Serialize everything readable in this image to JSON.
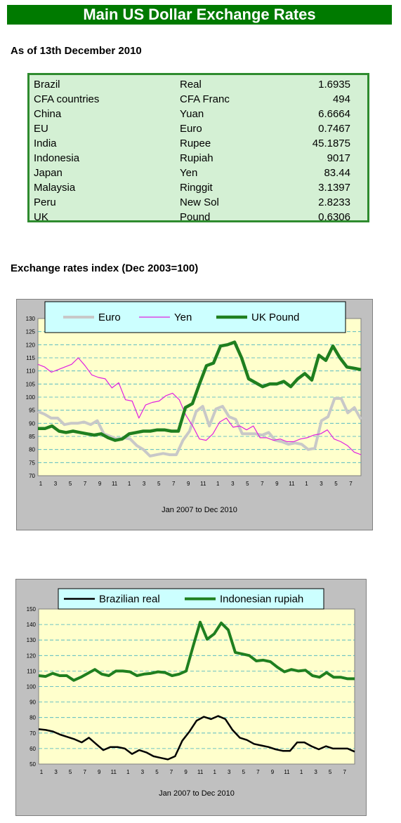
{
  "title": "Main US Dollar Exchange Rates",
  "as_of": "As of 13th December 2010",
  "rates": [
    {
      "country": "Brazil",
      "currency": "Real",
      "value": "1.6935"
    },
    {
      "country": "CFA countries",
      "currency": "CFA Franc",
      "value": "494"
    },
    {
      "country": "China",
      "currency": "Yuan",
      "value": "6.6664"
    },
    {
      "country": "EU",
      "currency": "Euro",
      "value": "0.7467"
    },
    {
      "country": "India",
      "currency": "Rupee",
      "value": "45.1875"
    },
    {
      "country": "Indonesia",
      "currency": "Rupiah",
      "value": "9017"
    },
    {
      "country": "Japan",
      "currency": "Yen",
      "value": "83.44"
    },
    {
      "country": "Malaysia",
      "currency": "Ringgit",
      "value": "3.1397"
    },
    {
      "country": "Peru",
      "currency": "New Sol",
      "value": "2.8233"
    },
    {
      "country": "UK",
      "currency": "Pound",
      "value": "0.6306"
    }
  ],
  "index_title": "Exchange rates index (Dec 2003=100)",
  "chart_data": [
    {
      "type": "line",
      "xlabel": "Jan 2007 to Dec 2010",
      "x_tick_labels": [
        "1",
        "3",
        "5",
        "7",
        "9",
        "11",
        "1",
        "3",
        "5",
        "7",
        "9",
        "11",
        "1",
        "3",
        "5",
        "7",
        "9",
        "11",
        "1",
        "3",
        "5",
        "7"
      ],
      "ylim": [
        70,
        130
      ],
      "y_ticks": [
        70,
        75,
        80,
        85,
        90,
        95,
        100,
        105,
        110,
        115,
        120,
        125,
        130
      ],
      "legend_position": "top",
      "grid": true,
      "series": [
        {
          "name": "Euro",
          "color": "#c8c8c8",
          "width": 4,
          "values": [
            94.5,
            93.5,
            92,
            92,
            89.5,
            90,
            90,
            90.5,
            89.5,
            91,
            86,
            85,
            84,
            84.5,
            84,
            81.5,
            80,
            77.5,
            78,
            78.5,
            78,
            78,
            83.5,
            87,
            94.5,
            96.5,
            89,
            95.5,
            96.5,
            92.5,
            91.5,
            86,
            86,
            86,
            85.5,
            86.5,
            83.5,
            83,
            82,
            82.5,
            82,
            80,
            80.5,
            91,
            92.5,
            99.5,
            99.5,
            94,
            96,
            91.5
          ]
        },
        {
          "name": "Yen",
          "color": "#e020e0",
          "width": 1.2,
          "values": [
            112.5,
            111.5,
            109.5,
            110.5,
            111.5,
            112.5,
            115,
            112,
            108.5,
            107.5,
            107,
            103.5,
            105.5,
            99,
            98.5,
            92,
            97,
            98,
            98.5,
            100.5,
            101.5,
            99,
            93,
            89,
            84,
            83.5,
            86,
            90.5,
            92,
            88.5,
            89,
            87.5,
            89,
            84.5,
            84.5,
            83.5,
            84,
            83,
            83,
            84,
            84.5,
            85.5,
            86,
            87.5,
            84,
            83,
            81.5,
            79,
            78
          ]
        },
        {
          "name": "UK Pound",
          "color": "#1f7f1f",
          "width": 4.5,
          "values": [
            88,
            88,
            89,
            87,
            86.5,
            87,
            86.5,
            86,
            85.5,
            86,
            84.5,
            83.5,
            84,
            86,
            86.5,
            87,
            87,
            87.5,
            87.5,
            87,
            87,
            96,
            97.5,
            105,
            112,
            113,
            119.5,
            120,
            121,
            115,
            107,
            105.5,
            104,
            105,
            105,
            106,
            104,
            107,
            109,
            106.5,
            116,
            114,
            119.5,
            115,
            111.5,
            111,
            110.5
          ]
        }
      ]
    },
    {
      "type": "line",
      "xlabel": "Jan 2007 to Dec 2010",
      "x_tick_labels": [
        "1",
        "3",
        "5",
        "7",
        "9",
        "11",
        "1",
        "3",
        "5",
        "7",
        "9",
        "11",
        "1",
        "3",
        "5",
        "7",
        "9",
        "11",
        "1",
        "3",
        "5",
        "7"
      ],
      "ylim": [
        50,
        150
      ],
      "y_ticks": [
        50,
        60,
        70,
        80,
        90,
        100,
        110,
        120,
        130,
        140,
        150
      ],
      "legend_position": "top",
      "grid": true,
      "series": [
        {
          "name": "Brazilian real",
          "color": "#000000",
          "width": 2.5,
          "values": [
            72.5,
            72,
            71,
            69,
            67.5,
            66,
            64,
            67,
            63,
            59,
            61,
            61,
            60,
            56.5,
            59,
            57.5,
            55,
            54,
            53,
            55,
            65,
            71,
            78,
            80.5,
            79,
            81,
            79,
            72,
            67,
            65.5,
            63,
            62,
            61,
            59.5,
            58.5,
            58.5,
            64,
            64,
            61.5,
            59.5,
            61.5,
            60,
            60,
            60,
            58
          ]
        },
        {
          "name": "Indonesian rupiah",
          "color": "#1f7f1f",
          "width": 4,
          "values": [
            107,
            106.5,
            108.5,
            107,
            107,
            104,
            106,
            108.5,
            111,
            108,
            107,
            110,
            110,
            109.5,
            107,
            108,
            108.5,
            109.5,
            109,
            107,
            108,
            110,
            126,
            141.5,
            130.5,
            134,
            141,
            136.5,
            122,
            121,
            120,
            116.5,
            117,
            116,
            112.5,
            109.5,
            111,
            110,
            110.5,
            107,
            106,
            109,
            106,
            106,
            105,
            105
          ]
        }
      ]
    }
  ]
}
